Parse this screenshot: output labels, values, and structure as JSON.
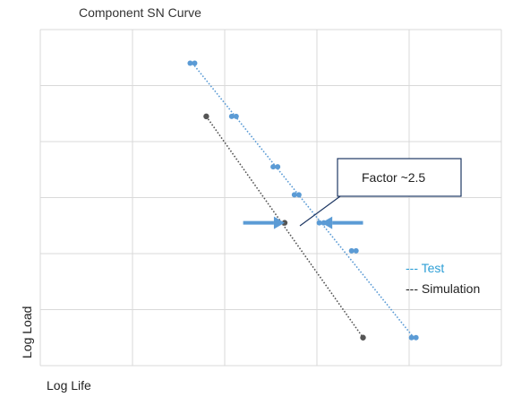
{
  "chart_data": {
    "type": "scatter",
    "title": "Component SN Curve",
    "xlabel": "Log Life",
    "ylabel": "Log Load",
    "xlim": [
      0,
      5
    ],
    "ylim": [
      0,
      6
    ],
    "grid": true,
    "legend_position": "right",
    "series": [
      {
        "name": "--- Test",
        "color": "#5b9bd5",
        "line_style": "dotted",
        "points": [
          [
            1.65,
            5.4
          ],
          [
            2.1,
            4.45
          ],
          [
            2.55,
            3.55
          ],
          [
            2.78,
            3.05
          ],
          [
            3.05,
            2.55
          ],
          [
            3.4,
            2.05
          ],
          [
            4.05,
            0.5
          ]
        ],
        "fit": [
          [
            1.65,
            5.4
          ],
          [
            4.05,
            0.5
          ]
        ]
      },
      {
        "name": "--- Simulation",
        "color": "#555555",
        "line_style": "dotted",
        "points": [
          [
            1.8,
            4.45
          ],
          [
            2.65,
            2.55
          ],
          [
            3.5,
            0.5
          ]
        ],
        "fit": [
          [
            1.8,
            4.45
          ],
          [
            3.5,
            0.5
          ]
        ]
      }
    ],
    "annotations": [
      {
        "text": "Factor ~2.5",
        "x": 3.25,
        "y": 3.6
      }
    ],
    "arrows": [
      {
        "direction": "right",
        "y": 2.55,
        "from": 2.2,
        "to": 2.65
      },
      {
        "direction": "left",
        "y": 2.55,
        "from": 3.5,
        "to": 3.05
      }
    ]
  }
}
